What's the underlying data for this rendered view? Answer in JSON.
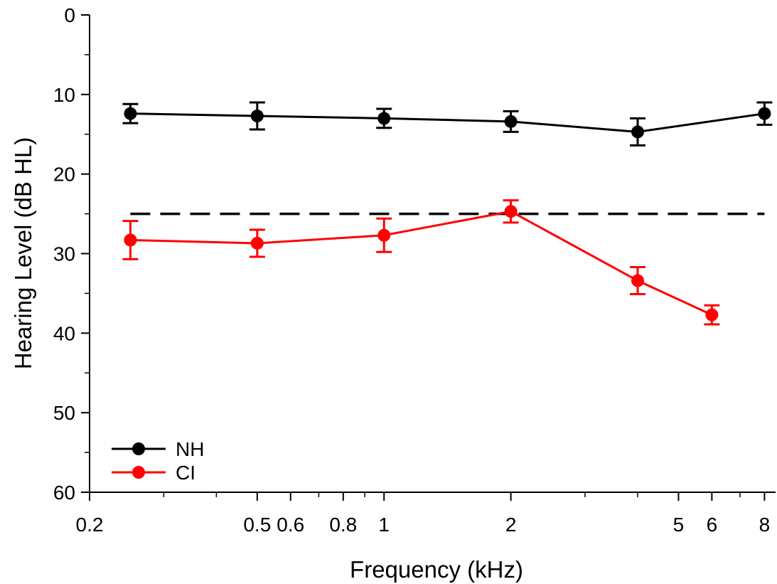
{
  "chart_data": {
    "type": "line",
    "title": "",
    "xlabel": "Frequency (kHz)",
    "ylabel": "Hearing Level (dB HL)",
    "x_scale": "log",
    "y_inverted": true,
    "xlim": [
      0.2,
      8.5
    ],
    "ylim": [
      0,
      60
    ],
    "x_ticks": [
      {
        "value": 0.2,
        "label": "0.2"
      },
      {
        "value": 0.5,
        "label": "0.5"
      },
      {
        "value": 0.6,
        "label": "0.6"
      },
      {
        "value": 0.8,
        "label": "0.8"
      },
      {
        "value": 1,
        "label": "1"
      },
      {
        "value": 2,
        "label": "2"
      },
      {
        "value": 5,
        "label": "5"
      },
      {
        "value": 6,
        "label": "6"
      },
      {
        "value": 8,
        "label": "8"
      }
    ],
    "x_minor_ticks": [
      0.3,
      0.4,
      0.7,
      0.9,
      3,
      4,
      7
    ],
    "y_ticks": [
      {
        "value": 0,
        "label": "0"
      },
      {
        "value": 10,
        "label": "10"
      },
      {
        "value": 20,
        "label": "20"
      },
      {
        "value": 30,
        "label": "30"
      },
      {
        "value": 40,
        "label": "40"
      },
      {
        "value": 50,
        "label": "50"
      },
      {
        "value": 60,
        "label": "60"
      }
    ],
    "y_minor_ticks": [
      5,
      15,
      25,
      35,
      45,
      55
    ],
    "reference_line": {
      "y": 25,
      "style": "dashed",
      "color": "#000000"
    },
    "series": [
      {
        "name": "NH",
        "color": "#000000",
        "x": [
          0.25,
          0.5,
          1,
          2,
          4,
          8
        ],
        "y": [
          12.4,
          12.7,
          13.0,
          13.4,
          14.7,
          12.4
        ],
        "err": [
          1.2,
          1.7,
          1.2,
          1.3,
          1.7,
          1.4
        ]
      },
      {
        "name": "CI",
        "color": "#ff0000",
        "x": [
          0.25,
          0.5,
          1,
          2,
          4,
          6
        ],
        "y": [
          28.3,
          28.7,
          27.7,
          24.7,
          33.4,
          37.7
        ],
        "err": [
          2.4,
          1.7,
          2.1,
          1.4,
          1.7,
          1.2
        ]
      }
    ],
    "legend": {
      "position": "bottom-left"
    },
    "grid": false
  }
}
